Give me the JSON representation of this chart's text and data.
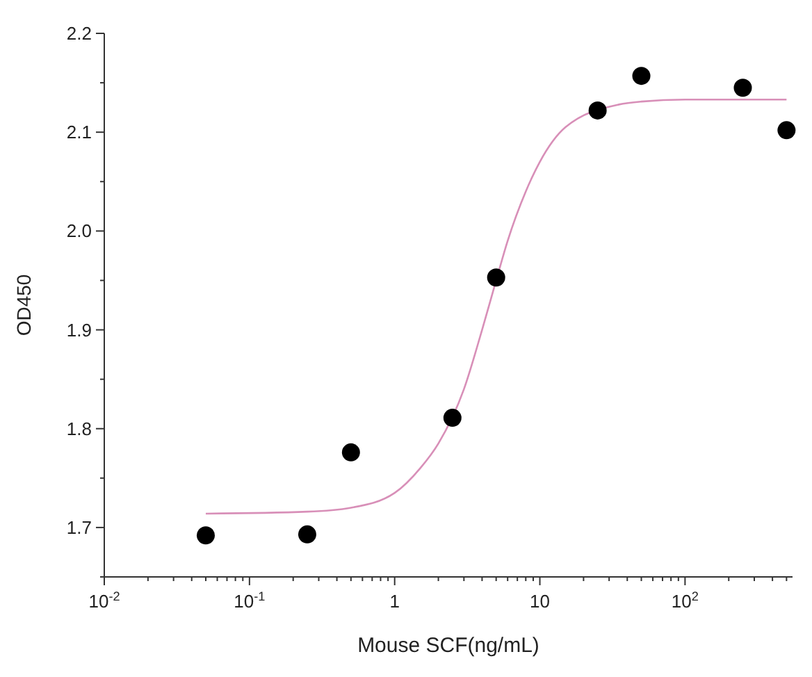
{
  "chart_data": {
    "type": "scatter",
    "xlabel": "Mouse SCF(ng/mL)",
    "ylabel": "OD450",
    "log": "x",
    "grid": false,
    "xlim": [
      0.01,
      550
    ],
    "ylim": [
      1.65,
      2.2
    ],
    "xticks": [
      {
        "value": 0.01,
        "label": "10$^{-2}$"
      },
      {
        "value": 0.1,
        "label": "10$^{-1}$"
      },
      1,
      10,
      {
        "value": 100,
        "label": "10$^{2}$"
      }
    ],
    "yticks": [
      {
        "value": 1.65,
        "label": null
      },
      1.7,
      {
        "value": 1.75,
        "label": null
      },
      1.8,
      {
        "value": 1.85,
        "label": null
      },
      1.9,
      {
        "value": 1.95,
        "label": null
      },
      {
        "value": 2,
        "label": "2.0"
      },
      {
        "value": 2.05,
        "label": null
      },
      2.1,
      {
        "value": 2.15,
        "label": null
      },
      2.2
    ],
    "series": [
      {
        "type": "line",
        "color": "#d88fb8",
        "marker": "none",
        "x": [
          0.05,
          0.25,
          0.5,
          1,
          1.5,
          2,
          3,
          4,
          5,
          6,
          8,
          10,
          15,
          35,
          50,
          100,
          500
        ],
        "values": [
          1.714,
          1.716,
          1.72,
          1.735,
          1.76,
          1.785,
          1.84,
          1.9,
          1.95,
          1.99,
          2.04,
          2.07,
          2.105,
          2.128,
          2.131,
          2.133,
          2.133
        ]
      },
      {
        "color": "#000000",
        "marker": "circle",
        "x": [
          0.05,
          0.25,
          0.5,
          2.5,
          5,
          25,
          50,
          250,
          500
        ],
        "values": [
          1.692,
          1.693,
          1.776,
          1.811,
          1.953,
          2.122,
          2.157,
          2.145,
          2.102
        ]
      }
    ]
  }
}
